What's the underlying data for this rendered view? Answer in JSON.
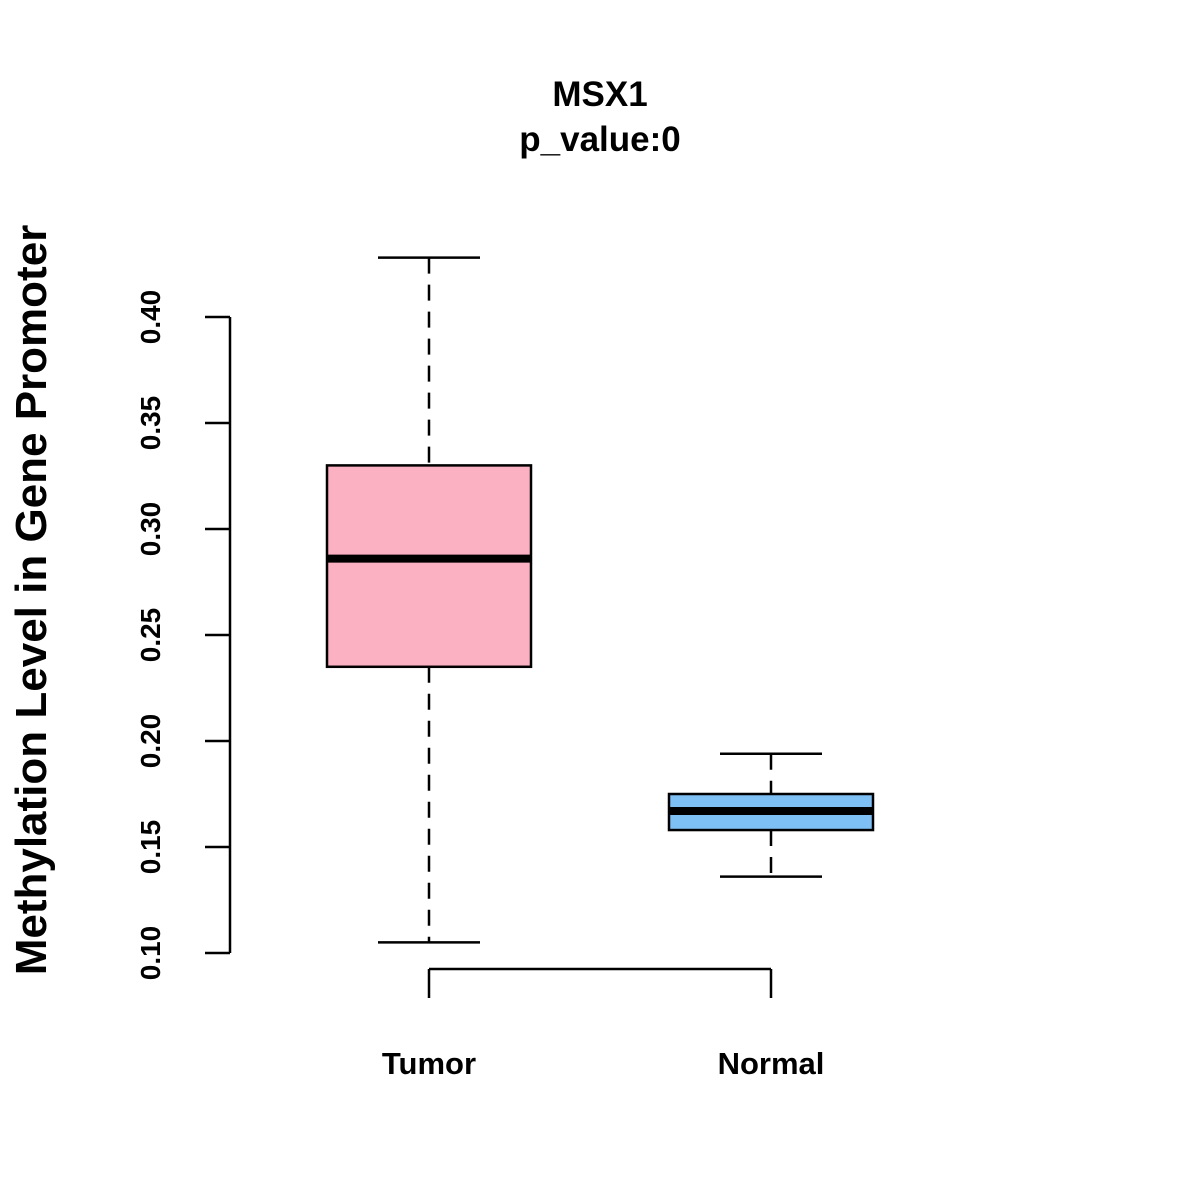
{
  "chart_data": {
    "type": "boxplot",
    "title": "MSX1",
    "subtitle": "p_value:0",
    "xlabel": "",
    "ylabel": "Methylation Level in Gene Promoter",
    "ylim": [
      0.1,
      0.4
    ],
    "yticks": [
      "0.10",
      "0.15",
      "0.20",
      "0.25",
      "0.30",
      "0.35",
      "0.40"
    ],
    "ytick_values": [
      0.1,
      0.15,
      0.2,
      0.25,
      0.3,
      0.35,
      0.4
    ],
    "categories": [
      "Tumor",
      "Normal"
    ],
    "series": [
      {
        "name": "Tumor",
        "min": 0.105,
        "q1": 0.235,
        "median": 0.286,
        "q3": 0.33,
        "max": 0.428,
        "color": "#FBB1C2"
      },
      {
        "name": "Normal",
        "min": 0.136,
        "q1": 0.158,
        "median": 0.167,
        "q3": 0.175,
        "max": 0.194,
        "color": "#7EC0F4"
      }
    ],
    "grid": false,
    "legend": "none"
  }
}
